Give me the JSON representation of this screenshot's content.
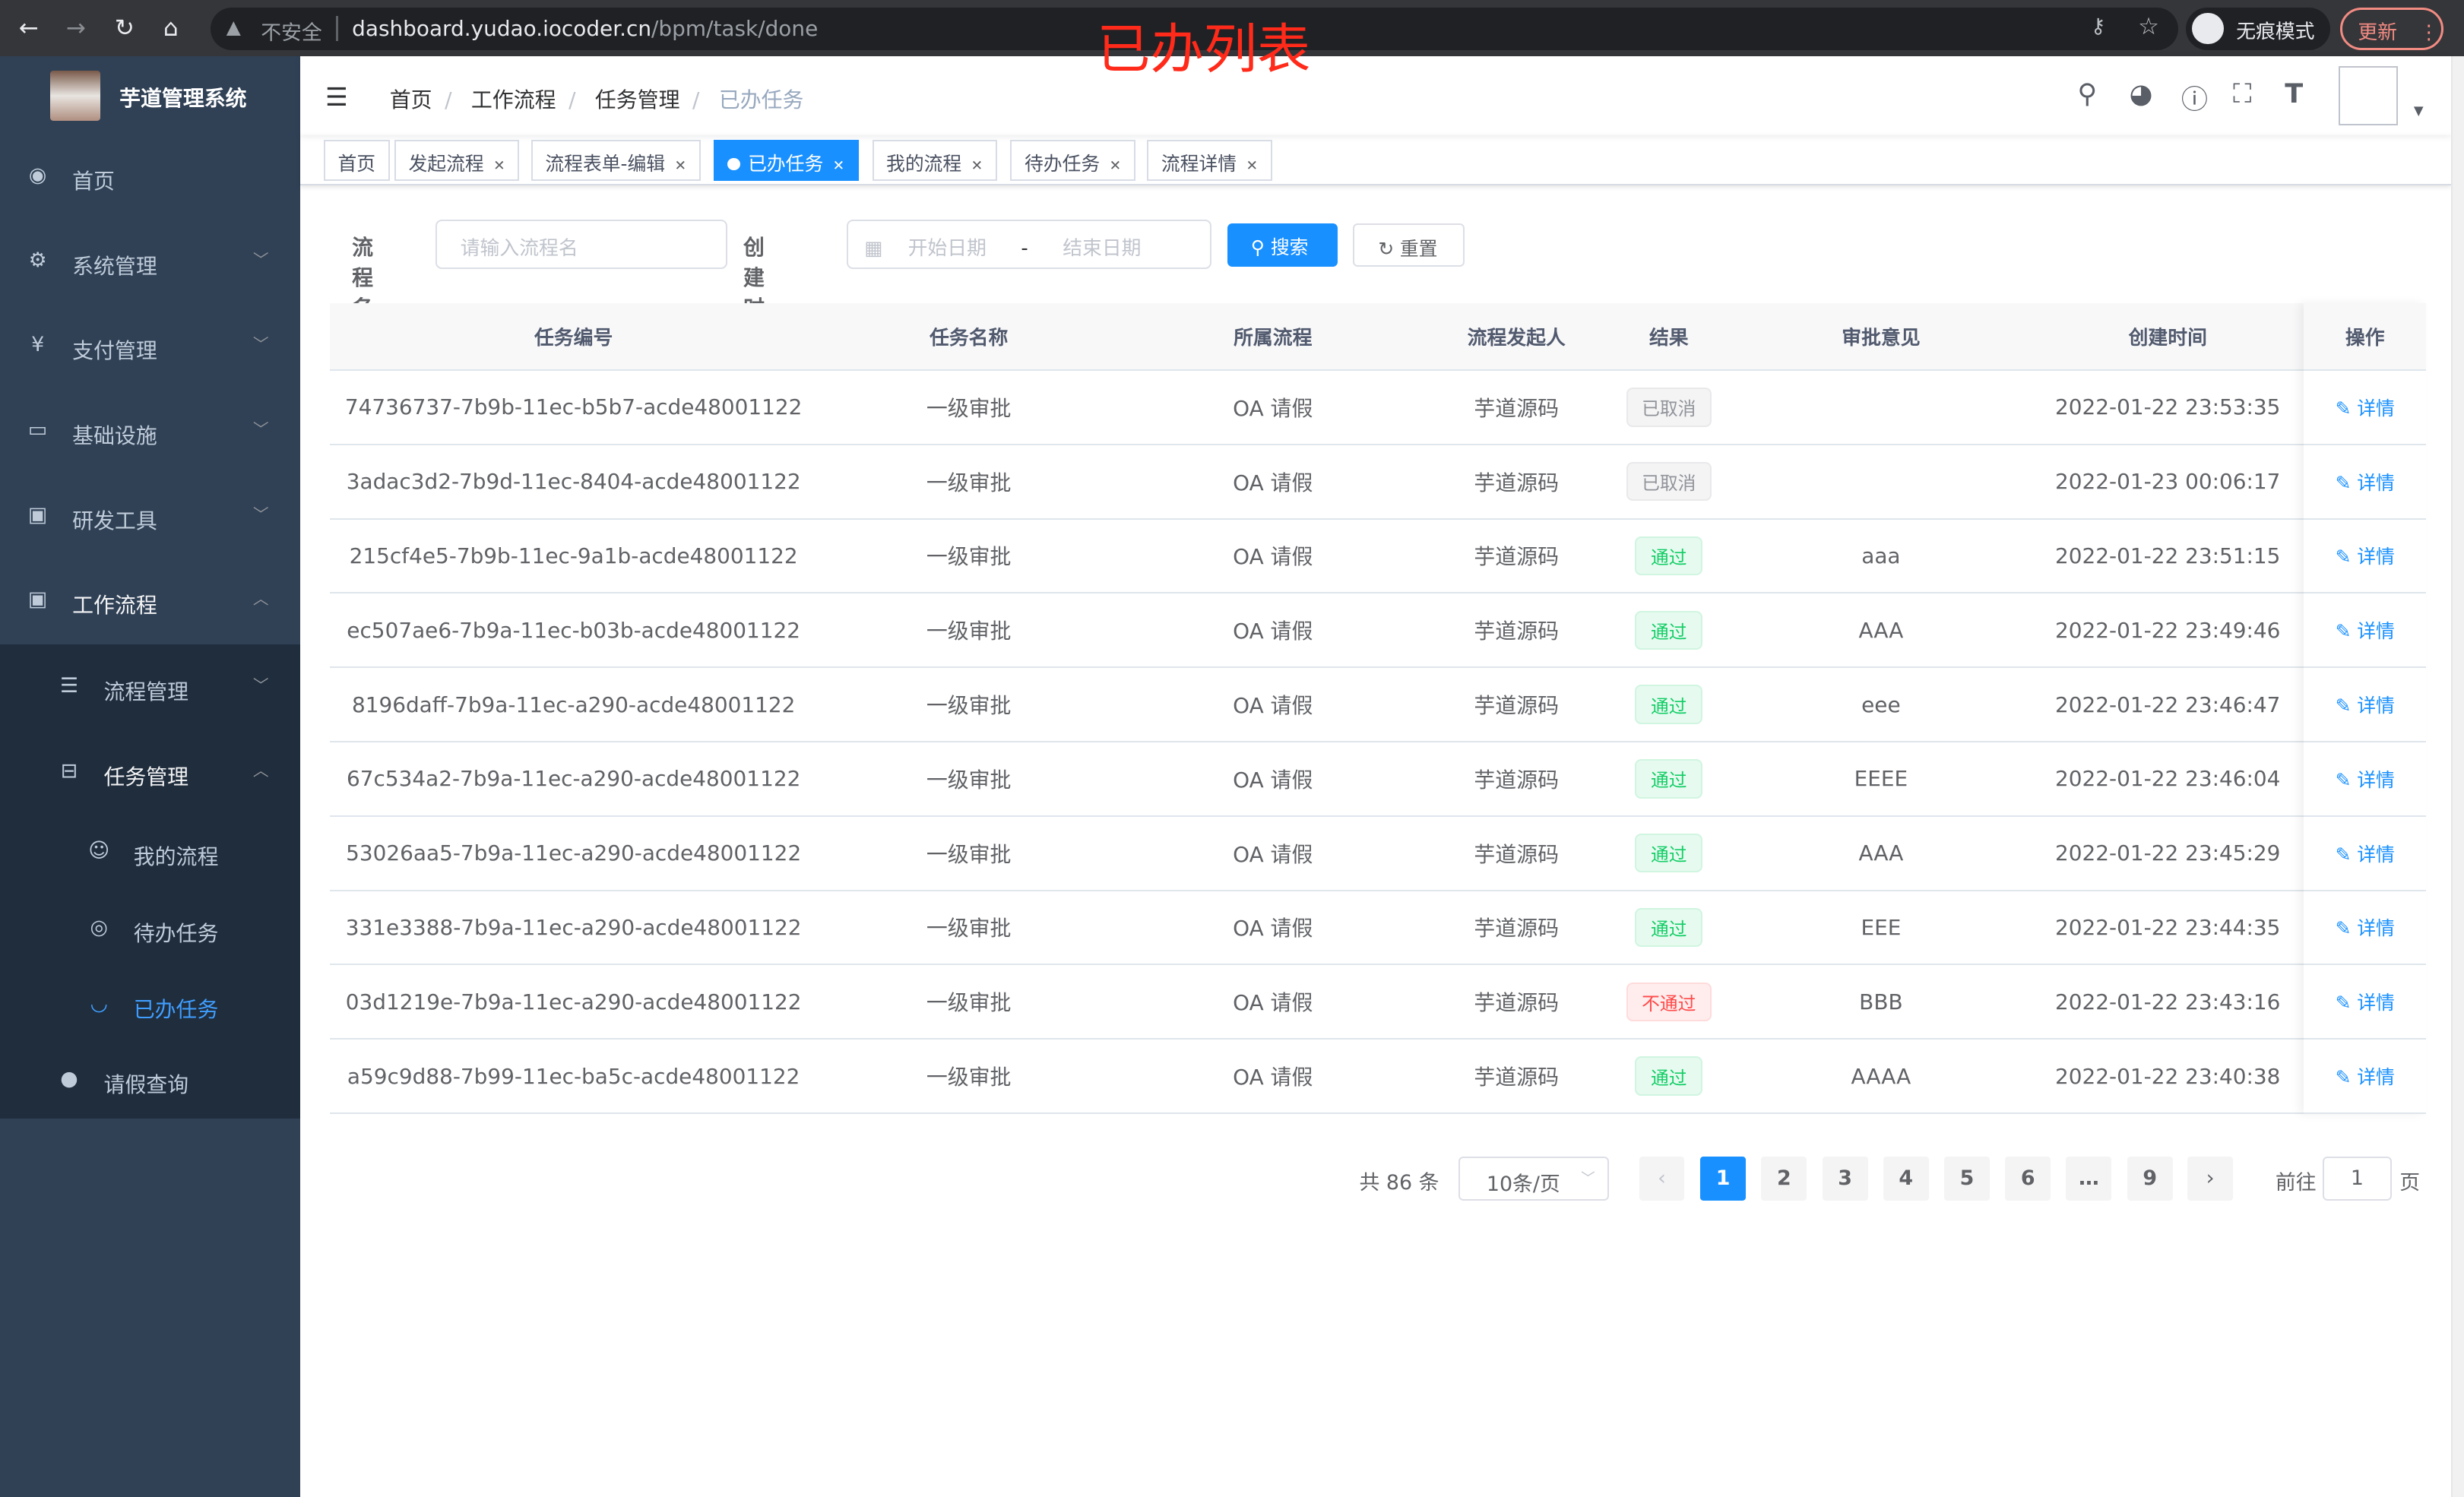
{
  "browser": {
    "url_host": "dashboard.yudao.iocoder.cn",
    "url_path": "/bpm/task/done",
    "insecure_label": "不安全",
    "incognito_label": "无痕模式",
    "update_label": "更新"
  },
  "annotation": "已办列表",
  "sidebar": {
    "title": "芋道管理系统",
    "items": [
      {
        "label": "首页",
        "icon": "dashboard-icon"
      },
      {
        "label": "系统管理",
        "icon": "gear-icon"
      },
      {
        "label": "支付管理",
        "icon": "yen-icon"
      },
      {
        "label": "基础设施",
        "icon": "monitor-icon"
      },
      {
        "label": "研发工具",
        "icon": "toolbox-icon"
      },
      {
        "label": "工作流程",
        "icon": "toolbox-icon"
      },
      {
        "label": "流程管理",
        "icon": "list-icon"
      },
      {
        "label": "任务管理",
        "icon": "tree-icon"
      },
      {
        "label": "我的流程",
        "icon": "people-icon"
      },
      {
        "label": "待办任务",
        "icon": "eye-icon"
      },
      {
        "label": "已办任务",
        "icon": "eye-closed-icon"
      },
      {
        "label": "请假查询",
        "icon": "user-icon"
      }
    ],
    "active": "已办任务",
    "accent": "#409eff"
  },
  "breadcrumb": [
    "首页",
    "工作流程",
    "任务管理",
    "已办任务"
  ],
  "tags": [
    "首页",
    "发起流程",
    "流程表单-编辑",
    "已办任务",
    "我的流程",
    "待办任务",
    "流程详情"
  ],
  "search": {
    "name_label": "流程名",
    "name_placeholder": "请输入流程名",
    "time_label": "创建时间",
    "start_placeholder": "开始日期",
    "range_sep": "-",
    "end_placeholder": "结束日期",
    "search_btn": "搜索",
    "reset_btn": "重置"
  },
  "table": {
    "columns": [
      "任务编号",
      "任务名称",
      "所属流程",
      "流程发起人",
      "结果",
      "审批意见",
      "创建时间",
      "操作"
    ],
    "rows": [
      {
        "id": "74736737-7b9b-11ec-b5b7-acde48001122",
        "name": "一级审批",
        "process": "OA 请假",
        "starter": "芋道源码",
        "result": "已取消",
        "status": "cancel",
        "comment": "",
        "time": "2022-01-22 23:53:35",
        "action": "详情"
      },
      {
        "id": "3adac3d2-7b9d-11ec-8404-acde48001122",
        "name": "一级审批",
        "process": "OA 请假",
        "starter": "芋道源码",
        "result": "已取消",
        "status": "cancel",
        "comment": "",
        "time": "2022-01-23 00:06:17",
        "action": "详情"
      },
      {
        "id": "215cf4e5-7b9b-11ec-9a1b-acde48001122",
        "name": "一级审批",
        "process": "OA 请假",
        "starter": "芋道源码",
        "result": "通过",
        "status": "pass",
        "comment": "aaa",
        "time": "2022-01-22 23:51:15",
        "action": "详情"
      },
      {
        "id": "ec507ae6-7b9a-11ec-b03b-acde48001122",
        "name": "一级审批",
        "process": "OA 请假",
        "starter": "芋道源码",
        "result": "通过",
        "status": "pass",
        "comment": "AAA",
        "time": "2022-01-22 23:49:46",
        "action": "详情"
      },
      {
        "id": "8196daff-7b9a-11ec-a290-acde48001122",
        "name": "一级审批",
        "process": "OA 请假",
        "starter": "芋道源码",
        "result": "通过",
        "status": "pass",
        "comment": "eee",
        "time": "2022-01-22 23:46:47",
        "action": "详情"
      },
      {
        "id": "67c534a2-7b9a-11ec-a290-acde48001122",
        "name": "一级审批",
        "process": "OA 请假",
        "starter": "芋道源码",
        "result": "通过",
        "status": "pass",
        "comment": "EEEE",
        "time": "2022-01-22 23:46:04",
        "action": "详情"
      },
      {
        "id": "53026aa5-7b9a-11ec-a290-acde48001122",
        "name": "一级审批",
        "process": "OA 请假",
        "starter": "芋道源码",
        "result": "通过",
        "status": "pass",
        "comment": "AAA",
        "time": "2022-01-22 23:45:29",
        "action": "详情"
      },
      {
        "id": "331e3388-7b9a-11ec-a290-acde48001122",
        "name": "一级审批",
        "process": "OA 请假",
        "starter": "芋道源码",
        "result": "通过",
        "status": "pass",
        "comment": "EEE",
        "time": "2022-01-22 23:44:35",
        "action": "详情"
      },
      {
        "id": "03d1219e-7b9a-11ec-a290-acde48001122",
        "name": "一级审批",
        "process": "OA 请假",
        "starter": "芋道源码",
        "result": "不通过",
        "status": "fail",
        "comment": "BBB",
        "time": "2022-01-22 23:43:16",
        "action": "详情"
      },
      {
        "id": "a59c9d88-7b99-11ec-ba5c-acde48001122",
        "name": "一级审批",
        "process": "OA 请假",
        "starter": "芋道源码",
        "result": "通过",
        "status": "pass",
        "comment": "AAAA",
        "time": "2022-01-22 23:40:38",
        "action": "详情"
      }
    ]
  },
  "pagination": {
    "total": "共 86 条",
    "page_size": "10条/页",
    "pages": [
      "1",
      "2",
      "3",
      "4",
      "5",
      "6",
      "…",
      "9"
    ],
    "current": "1",
    "goto_label": "前往",
    "goto_value": "1",
    "page_unit": "页"
  }
}
